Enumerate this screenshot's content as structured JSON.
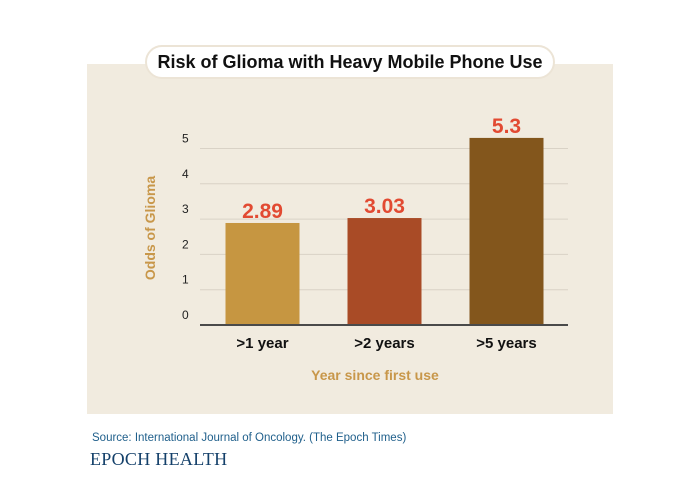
{
  "chart_data": {
    "type": "bar",
    "title": "Risk of Glioma with Heavy Mobile Phone Use",
    "xlabel": "Year since first use",
    "ylabel": "Odds of Glioma",
    "categories": [
      ">1 year",
      ">2 years",
      ">5 years"
    ],
    "values": [
      2.89,
      3.03,
      5.3
    ],
    "value_labels": [
      "2.89",
      "3.03",
      "5.3"
    ],
    "bar_colors": [
      "#c69641",
      "#a94b26",
      "#83561c"
    ],
    "ylim": [
      0,
      5.5
    ],
    "yticks": [
      0,
      1,
      2,
      3,
      4,
      5
    ],
    "grid": true,
    "legend": "none"
  },
  "footer": {
    "source": "Source: International Journal of Oncology. (The Epoch Times)",
    "brand": "EPOCH HEALTH"
  }
}
